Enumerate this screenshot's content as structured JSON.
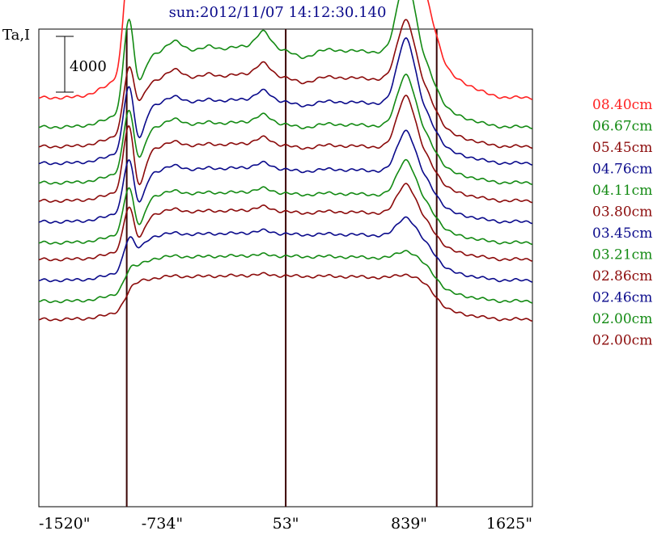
{
  "chart_data": {
    "type": "line",
    "title": "sun:2012/11/07 14:12:30.140",
    "ylabel": "Ta,I",
    "scale_bar_label": "4000",
    "xlim": [
      -1520,
      1625
    ],
    "x_tick_values": [
      -1520,
      -734,
      53,
      839,
      1625
    ],
    "x_ticks": [
      "-1520\"",
      "-734\"",
      "53\"",
      "839\"",
      "1625\""
    ],
    "vertical_markers": [
      -960,
      53,
      1015
    ],
    "limb_x": [
      -960,
      1015
    ],
    "colors": {
      "red": "#ff2020",
      "green": "#138a13",
      "darkred": "#8b0a0a",
      "navy": "#0a0a8b",
      "marker": "#3a0505"
    },
    "series": [
      {
        "name": "08.40cm",
        "color": "#ff2020",
        "baseline": 1400,
        "disk": 7900,
        "peak_w": 4900,
        "dip_w": 0,
        "bump_e": 8700,
        "bump_c": 1800,
        "ripple": 1000
      },
      {
        "name": "06.67cm",
        "color": "#138a13",
        "baseline": 3500,
        "disk": 5000,
        "peak_w": 4800,
        "dip_w": 1700,
        "bump_e": 5600,
        "bump_c": 1200,
        "ripple": 800
      },
      {
        "name": "05.45cm",
        "color": "#8b0a0a",
        "baseline": 4900,
        "disk": 4500,
        "peak_w": 3000,
        "dip_w": 1200,
        "bump_e": 4400,
        "bump_c": 900,
        "ripple": 700
      },
      {
        "name": "04.76cm",
        "color": "#0a0a8b",
        "baseline": 6100,
        "disk": 4000,
        "peak_w": 3300,
        "dip_w": 2200,
        "bump_e": 4800,
        "bump_c": 700,
        "ripple": 500
      },
      {
        "name": "04.11cm",
        "color": "#138a13",
        "baseline": 7500,
        "disk": 3800,
        "peak_w": 3100,
        "dip_w": 2000,
        "bump_e": 3800,
        "bump_c": 600,
        "ripple": 500
      },
      {
        "name": "03.80cm",
        "color": "#8b0a0a",
        "baseline": 8800,
        "disk": 3600,
        "peak_w": 3500,
        "dip_w": 2500,
        "bump_e": 3800,
        "bump_c": 500,
        "ripple": 400
      },
      {
        "name": "03.45cm",
        "color": "#0a0a8b",
        "baseline": 10300,
        "disk": 3400,
        "peak_w": 2600,
        "dip_w": 2000,
        "bump_e": 3000,
        "bump_c": 400,
        "ripple": 400
      },
      {
        "name": "03.21cm",
        "color": "#138a13",
        "baseline": 11800,
        "disk": 3200,
        "peak_w": 2200,
        "dip_w": 1900,
        "bump_e": 2600,
        "bump_c": 300,
        "ripple": 300
      },
      {
        "name": "02.86cm",
        "color": "#8b0a0a",
        "baseline": 13000,
        "disk": 3100,
        "peak_w": 2000,
        "dip_w": 1500,
        "bump_e": 2200,
        "bump_c": 300,
        "ripple": 300
      },
      {
        "name": "02.46cm",
        "color": "#0a0a8b",
        "baseline": 14500,
        "disk": 3000,
        "peak_w": 1200,
        "dip_w": 600,
        "bump_e": 1400,
        "bump_c": 200,
        "ripple": 200
      },
      {
        "name": "02.00cm",
        "color": "#138a13",
        "baseline": 16000,
        "disk": 2900,
        "peak_w": 400,
        "dip_w": 200,
        "bump_e": 600,
        "bump_c": 100,
        "ripple": 150
      },
      {
        "name": "02.00cm",
        "color": "#8b0a0a",
        "baseline": 17300,
        "disk": 2800,
        "peak_w": 200,
        "dip_w": 0,
        "bump_e": 300,
        "bump_c": 100,
        "ripple": 120
      }
    ]
  }
}
